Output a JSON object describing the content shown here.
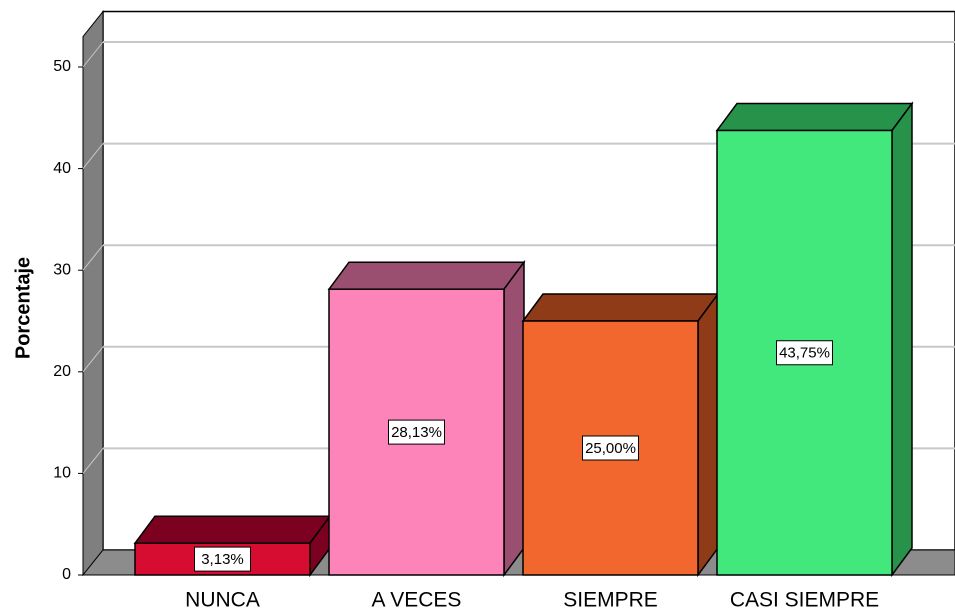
{
  "chart_data": {
    "type": "bar3d",
    "y_label": "Porcentaje",
    "categories": [
      "NUNCA",
      "A VECES",
      "SIEMPRE",
      "CASI SIEMPRE"
    ],
    "values": [
      3.13,
      28.13,
      25.0,
      43.75
    ],
    "value_labels": [
      "3,13%",
      "28,13%",
      "25,00%",
      "43,75%"
    ],
    "colors": [
      "#d60c30",
      "#fc84b8",
      "#f2672d",
      "#42e87c"
    ],
    "side_colors": [
      "#7c0020",
      "#9b4f70",
      "#8f3b18",
      "#27924a"
    ],
    "ylim": [
      0,
      53
    ],
    "yticks": [
      0,
      10,
      20,
      30,
      40,
      50
    ],
    "grid": true
  }
}
